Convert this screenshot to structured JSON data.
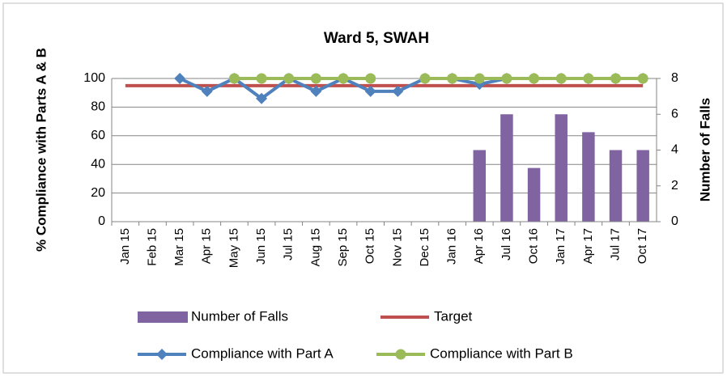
{
  "chart_data": {
    "type": "combo",
    "title": "Ward 5, SWAH",
    "ylabel": "% Compliance with Parts A & B",
    "y2label": "Number of Falls",
    "categories": [
      "Jan 15",
      "Feb 15",
      "Mar 15",
      "Apr 15",
      "May 15",
      "Jun 15",
      "Jul 15",
      "Aug 15",
      "Sep 15",
      "Oct 15",
      "Nov 15",
      "Dec 15",
      "Jan 16",
      "Apr 16",
      "Jul 16",
      "Oct 16",
      "Jan 17",
      "Apr 17",
      "Jul 17",
      "Oct 17"
    ],
    "ylim": [
      0,
      100
    ],
    "yticks": [
      0,
      20,
      40,
      60,
      80,
      100
    ],
    "y2lim": [
      0,
      8
    ],
    "y2ticks": [
      0,
      2,
      4,
      6,
      8
    ],
    "grid": true,
    "series": [
      {
        "name": "Number of Falls",
        "type": "bar",
        "axis": "y2",
        "color": "#8064a2",
        "values": [
          null,
          null,
          null,
          null,
          null,
          null,
          null,
          null,
          null,
          null,
          null,
          null,
          null,
          4,
          6,
          3,
          6,
          5,
          4,
          4
        ]
      },
      {
        "name": "Target",
        "type": "line",
        "color": "#c0504d",
        "values": [
          95,
          95,
          95,
          95,
          95,
          95,
          95,
          95,
          95,
          95,
          95,
          95,
          95,
          95,
          95,
          95,
          95,
          95,
          95,
          95
        ]
      },
      {
        "name": "Compliance with Part A",
        "type": "line",
        "marker": "diamond",
        "color": "#4f81bd",
        "values": [
          null,
          null,
          100,
          91,
          100,
          86,
          100,
          91,
          100,
          91,
          91,
          100,
          100,
          96,
          100,
          100,
          100,
          100,
          100,
          100
        ]
      },
      {
        "name": "Compliance with Part B",
        "type": "line",
        "marker": "circle",
        "color": "#9bbb59",
        "values": [
          null,
          null,
          null,
          null,
          100,
          100,
          100,
          100,
          100,
          100,
          null,
          100,
          100,
          100,
          100,
          100,
          100,
          100,
          100,
          100
        ]
      }
    ]
  }
}
